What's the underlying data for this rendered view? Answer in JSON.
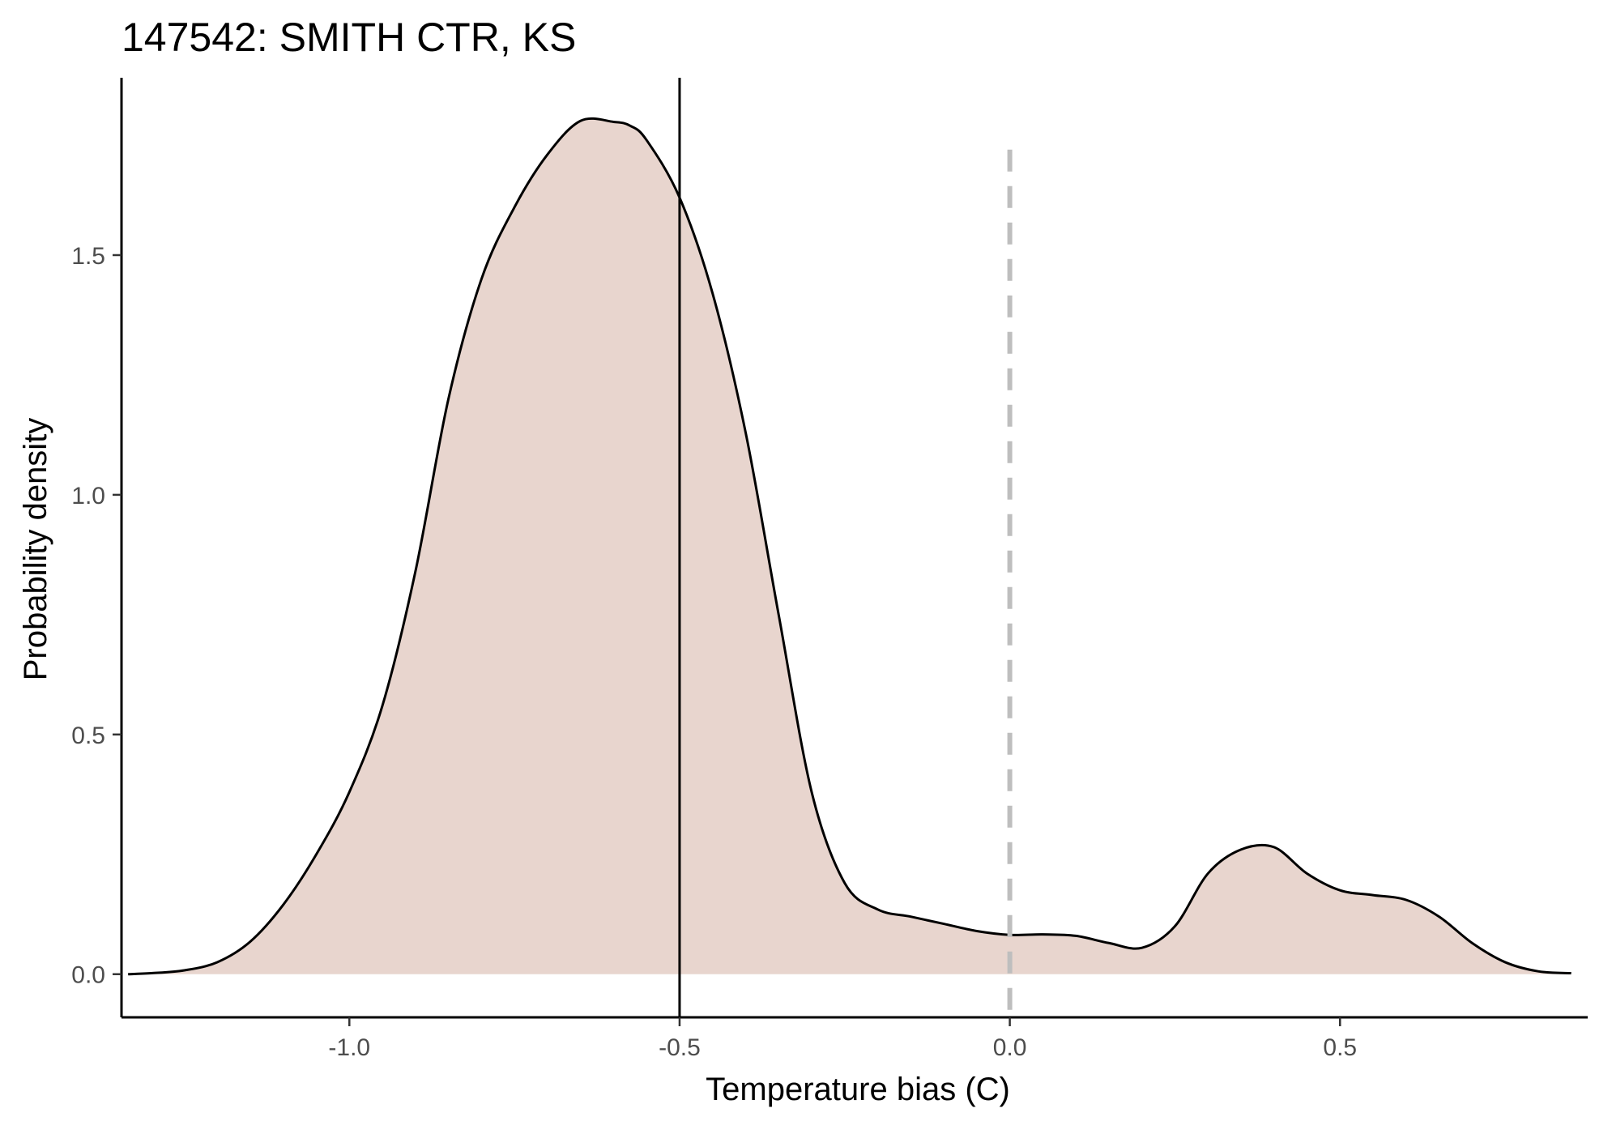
{
  "chart_data": {
    "type": "area",
    "title": "147542: SMITH CTR, KS",
    "xlabel": "Temperature bias (C)",
    "ylabel": "Probability density",
    "xlim": [
      -1.345,
      0.875
    ],
    "ylim": [
      -0.09,
      1.87
    ],
    "x_ticks": [
      -1.0,
      -0.5,
      0.0,
      0.5
    ],
    "x_tick_labels": [
      "-1.0",
      "-0.5",
      "0.0",
      "0.5"
    ],
    "y_ticks": [
      0.0,
      0.5,
      1.0,
      1.5
    ],
    "y_tick_labels": [
      "0.0",
      "0.5",
      "1.0",
      "1.5"
    ],
    "grid": false,
    "fill_color": "#e8d5ce",
    "line_color": "#000000",
    "reference_lines": [
      {
        "x": -0.5,
        "style": "solid",
        "color": "#000000"
      },
      {
        "x": 0.0,
        "style": "dashed",
        "color": "#bebebe"
      }
    ],
    "x": [
      -1.335,
      -1.3,
      -1.25,
      -1.2,
      -1.15,
      -1.1,
      -1.05,
      -1.0,
      -0.95,
      -0.9,
      -0.85,
      -0.8,
      -0.75,
      -0.7,
      -0.65,
      -0.6,
      -0.575,
      -0.55,
      -0.5,
      -0.45,
      -0.4,
      -0.35,
      -0.3,
      -0.25,
      -0.2,
      -0.15,
      -0.1,
      -0.05,
      0.0,
      0.05,
      0.1,
      0.15,
      0.2,
      0.25,
      0.3,
      0.35,
      0.4,
      0.45,
      0.5,
      0.55,
      0.6,
      0.65,
      0.7,
      0.75,
      0.8,
      0.85
    ],
    "y": [
      0.0,
      0.002,
      0.008,
      0.025,
      0.068,
      0.145,
      0.25,
      0.38,
      0.56,
      0.84,
      1.2,
      1.45,
      1.6,
      1.71,
      1.78,
      1.778,
      1.77,
      1.74,
      1.62,
      1.42,
      1.13,
      0.75,
      0.38,
      0.19,
      0.135,
      0.12,
      0.105,
      0.09,
      0.082,
      0.083,
      0.08,
      0.065,
      0.055,
      0.1,
      0.21,
      0.26,
      0.265,
      0.21,
      0.175,
      0.165,
      0.155,
      0.12,
      0.065,
      0.025,
      0.006,
      0.002
    ]
  }
}
